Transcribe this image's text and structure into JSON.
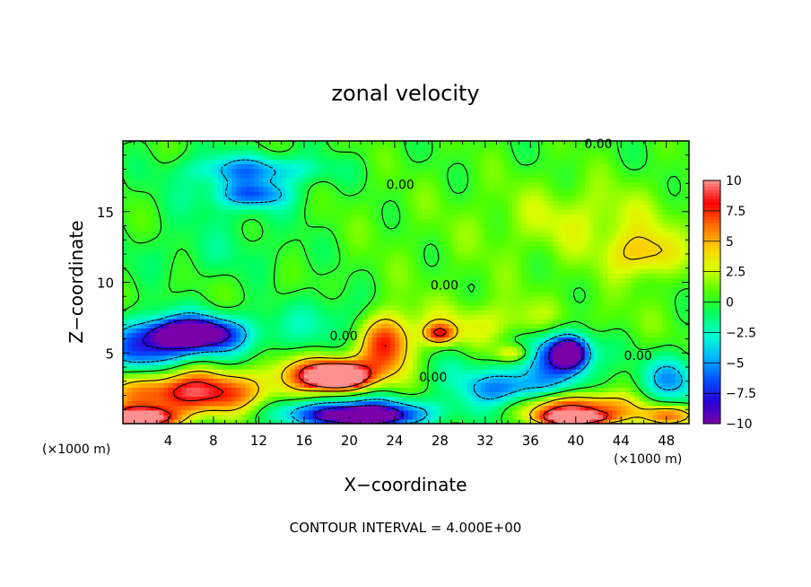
{
  "chart_data": {
    "type": "heatmap",
    "title": "zonal velocity",
    "xlabel": "X−coordinate",
    "ylabel": "Z−coordinate",
    "x_unit": "(×1000 m)",
    "x_unit_right": "(×1000 m)",
    "footer": "CONTOUR INTERVAL = 4.000E+00",
    "xlim": [
      0,
      50
    ],
    "ylim": [
      0,
      20
    ],
    "x_ticks": [
      4,
      8,
      12,
      16,
      20,
      24,
      28,
      32,
      36,
      40,
      44,
      48
    ],
    "y_ticks": [
      5,
      10,
      15
    ],
    "colorbar_ticks": [
      "10",
      "7.5",
      "5",
      "2.5",
      "0",
      "−2.5",
      "−5",
      "−7.5",
      "−10"
    ],
    "colorbar_range": [
      -10,
      10
    ],
    "colorbar_colors": [
      "#7a00a8",
      "#2a00d8",
      "#0050ff",
      "#00b4ff",
      "#00ffd0",
      "#00ff60",
      "#50ff00",
      "#d8ff00",
      "#ffcc00",
      "#ff6a00",
      "#ff0000",
      "#ff9090"
    ],
    "contour_labels": [
      {
        "text": "0.00",
        "x": 42.0,
        "y": 19.5
      },
      {
        "text": "0.00",
        "x": 24.5,
        "y": 16.6
      },
      {
        "text": "0.00",
        "x": 28.4,
        "y": 9.5
      },
      {
        "text": "0.00",
        "x": 19.5,
        "y": 5.9
      },
      {
        "text": "0.00",
        "x": 27.4,
        "y": 3.0
      },
      {
        "text": "0.00",
        "x": 45.5,
        "y": 4.5
      }
    ],
    "blobs": [
      {
        "x": 25,
        "y": 12,
        "rx": 40,
        "ry": 9,
        "v": 0.8
      },
      {
        "x": 10,
        "y": 16.5,
        "rx": 6,
        "ry": 2.5,
        "v": -2.5
      },
      {
        "x": 12,
        "y": 18,
        "rx": 6,
        "ry": 1.0,
        "v": -4
      },
      {
        "x": 11.5,
        "y": 16.2,
        "rx": 3,
        "ry": 0.8,
        "v": -4.5
      },
      {
        "x": 8,
        "y": 12,
        "rx": 10,
        "ry": 2,
        "v": -1.5
      },
      {
        "x": 18,
        "y": 7.5,
        "rx": 4,
        "ry": 2,
        "v": -2.5
      },
      {
        "x": 46,
        "y": 12.0,
        "rx": 3,
        "ry": 1.6,
        "v": 4
      },
      {
        "x": 41,
        "y": 14.5,
        "rx": 8,
        "ry": 2.5,
        "v": 2
      },
      {
        "x": 34,
        "y": 7,
        "rx": 9,
        "ry": 1.6,
        "v": 2.5
      },
      {
        "x": 6,
        "y": 6.3,
        "rx": 6,
        "ry": 1.6,
        "v": -7.5
      },
      {
        "x": 6,
        "y": 6.4,
        "rx": 3,
        "ry": 0.8,
        "v": -10
      },
      {
        "x": 2,
        "y": 5.0,
        "rx": 3.5,
        "ry": 1.5,
        "v": -5
      },
      {
        "x": 6,
        "y": 2.2,
        "rx": 7,
        "ry": 1.6,
        "v": 9
      },
      {
        "x": 1.5,
        "y": 0.4,
        "rx": 3,
        "ry": 0.7,
        "v": 12
      },
      {
        "x": 18.5,
        "y": 3.6,
        "rx": 4,
        "ry": 1.2,
        "v": 9
      },
      {
        "x": 19,
        "y": 3.3,
        "rx": 2.2,
        "ry": 0.7,
        "v": 12
      },
      {
        "x": 23.3,
        "y": 5.7,
        "rx": 2.2,
        "ry": 2.0,
        "v": 7
      },
      {
        "x": 28,
        "y": 6.4,
        "rx": 1.3,
        "ry": 0.7,
        "v": 7
      },
      {
        "x": 34.5,
        "y": 5.0,
        "rx": 1.5,
        "ry": 0.6,
        "v": 5
      },
      {
        "x": 20.5,
        "y": 0.8,
        "rx": 7,
        "ry": 1.0,
        "v": -9
      },
      {
        "x": 21,
        "y": 0.5,
        "rx": 3,
        "ry": 0.5,
        "v": -11
      },
      {
        "x": 34,
        "y": 2.5,
        "rx": 4,
        "ry": 1.3,
        "v": -6
      },
      {
        "x": 38.5,
        "y": 5.0,
        "rx": 3.5,
        "ry": 2.0,
        "v": -7
      },
      {
        "x": 39.5,
        "y": 5.0,
        "rx": 1.4,
        "ry": 1.0,
        "v": -10
      },
      {
        "x": 40,
        "y": 1.2,
        "rx": 5,
        "ry": 1.0,
        "v": 8
      },
      {
        "x": 40,
        "y": 0.4,
        "rx": 3,
        "ry": 0.5,
        "v": 12
      },
      {
        "x": 48.5,
        "y": 3.2,
        "rx": 2.5,
        "ry": 1.6,
        "v": -5
      },
      {
        "x": 48.5,
        "y": 0.6,
        "rx": 3,
        "ry": 0.7,
        "v": 6
      },
      {
        "x": 30,
        "y": 4.0,
        "rx": 3,
        "ry": 1.5,
        "v": -1.5
      }
    ]
  }
}
